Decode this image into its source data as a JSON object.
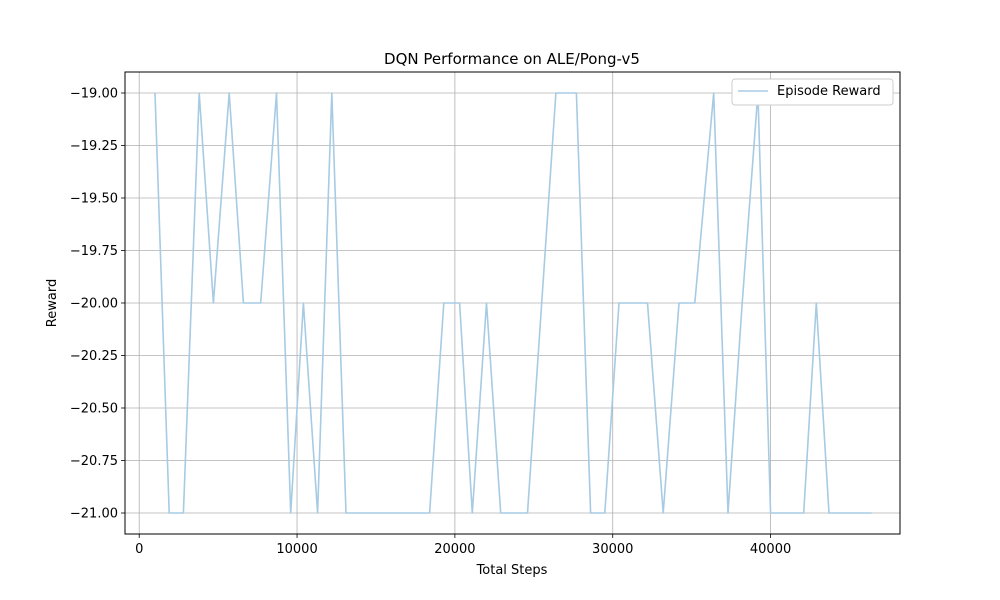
{
  "chart_data": {
    "type": "line",
    "title": "DQN Performance on ALE/Pong-v5",
    "xlabel": "Total Steps",
    "ylabel": "Reward",
    "xlim": [
      -900,
      48200
    ],
    "ylim": [
      -21.1,
      -18.9
    ],
    "xticks": [
      0,
      10000,
      20000,
      30000,
      40000
    ],
    "xtick_labels": [
      "0",
      "10000",
      "20000",
      "30000",
      "40000"
    ],
    "yticks": [
      -19.0,
      -19.25,
      -19.5,
      -19.75,
      -20.0,
      -20.25,
      -20.5,
      -20.75,
      -21.0
    ],
    "ytick_labels": [
      "−19.00",
      "−19.25",
      "−19.50",
      "−19.75",
      "−20.00",
      "−20.25",
      "−20.50",
      "−20.75",
      "−21.00"
    ],
    "grid": true,
    "legend_position": "top-right",
    "series": [
      {
        "name": "Episode Reward",
        "color": "#a6cbe3",
        "x": [
          1000,
          1900,
          2800,
          3800,
          4700,
          5700,
          6600,
          7700,
          8700,
          9600,
          10400,
          11300,
          12200,
          13100,
          14200,
          15200,
          16200,
          17300,
          18400,
          19300,
          20300,
          21100,
          22000,
          22900,
          23700,
          24600,
          25500,
          26400,
          27700,
          28600,
          29500,
          30400,
          31300,
          32200,
          33200,
          34200,
          35200,
          36400,
          37300,
          38200,
          39200,
          40000,
          41000,
          42100,
          42900,
          43700,
          44600,
          45500,
          46400
        ],
        "y": [
          -19,
          -21,
          -21,
          -19,
          -20,
          -19,
          -20,
          -20,
          -19,
          -21,
          -20,
          -21,
          -19,
          -21,
          -21,
          -21,
          -21,
          -21,
          -21,
          -20,
          -20,
          -21,
          -20,
          -21,
          -21,
          -21,
          -20,
          -19,
          -19,
          -21,
          -21,
          -20,
          -20,
          -20,
          -21,
          -20,
          -20,
          -19,
          -21,
          -20,
          -19,
          -21,
          -21,
          -21,
          -20,
          -21,
          -21,
          -21,
          -21
        ]
      }
    ]
  }
}
